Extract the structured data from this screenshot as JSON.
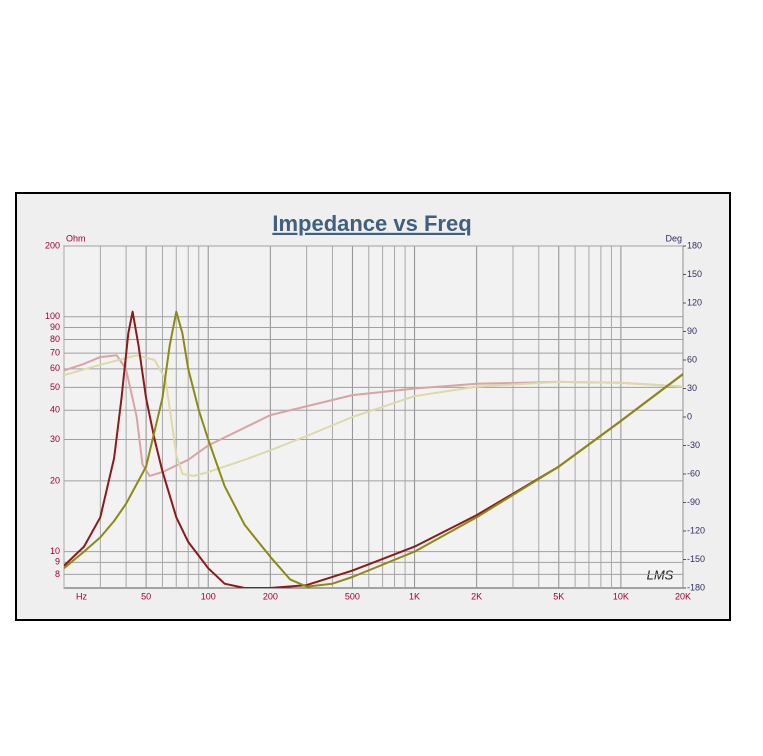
{
  "chart_data": {
    "type": "line",
    "title": "Impedance vs Freq",
    "ylabel": "Ohm",
    "y2label": "Deg",
    "xlabel": "Hz",
    "logo": "LMS",
    "xscale": "log",
    "yscale": "log",
    "grid": true,
    "xlim": [
      20,
      20000
    ],
    "ylim": [
      7,
      200
    ],
    "y2lim": [
      -180,
      180
    ],
    "xticks": [
      50,
      100,
      200,
      500,
      {
        "value": 1000,
        "label": "1K"
      },
      {
        "value": 2000,
        "label": "2K"
      },
      {
        "value": 5000,
        "label": "5K"
      },
      {
        "value": 10000,
        "label": "10K"
      },
      {
        "value": 20000,
        "label": "20K"
      }
    ],
    "xminor": [
      20,
      30,
      40,
      60,
      70,
      80,
      90,
      300,
      400,
      600,
      700,
      800,
      900,
      3000,
      4000,
      6000,
      7000,
      8000,
      9000
    ],
    "yticks": [
      8,
      9,
      10,
      20,
      30,
      40,
      50,
      60,
      70,
      80,
      90,
      100,
      200
    ],
    "y2ticks": [
      -180,
      -150,
      -120,
      -90,
      -60,
      -30,
      0,
      30,
      60,
      90,
      120,
      150,
      180
    ],
    "series": [
      {
        "color": "#d8a4a4",
        "axis": "y2",
        "x": [
          20,
          25,
          30,
          36,
          40,
          45,
          48,
          52,
          60,
          80,
          100,
          200,
          500,
          1000,
          2000,
          5000,
          10000,
          20000
        ],
        "values": [
          49,
          56,
          63,
          65,
          50,
          0,
          -50,
          -62,
          -58,
          -45,
          -30,
          2,
          23,
          30,
          35,
          37,
          36,
          32
        ]
      },
      {
        "color": "#dcdaa8",
        "axis": "y2",
        "x": [
          20,
          30,
          45,
          55,
          62,
          66,
          70,
          75,
          85,
          100,
          150,
          200,
          300,
          500,
          1000,
          2000,
          5000,
          10000,
          20000
        ],
        "values": [
          44,
          55,
          65,
          60,
          40,
          0,
          -40,
          -60,
          -62,
          -58,
          -45,
          -35,
          -20,
          0,
          22,
          32,
          37,
          36,
          32
        ]
      },
      {
        "color": "#8b1a1a",
        "x": [
          20,
          25,
          30,
          35,
          38,
          41,
          43,
          46,
          50,
          55,
          60,
          70,
          80,
          100,
          120,
          150,
          200,
          300,
          500,
          1000,
          2000,
          5000,
          10000,
          20000
        ],
        "values": [
          8.7,
          10.5,
          14,
          25,
          45,
          85,
          105,
          75,
          45,
          30,
          22,
          14,
          11,
          8.5,
          7.3,
          7,
          7,
          7.2,
          8.3,
          10.5,
          14.3,
          23,
          36,
          57
        ]
      },
      {
        "color": "#8b8b14",
        "x": [
          20,
          25,
          30,
          35,
          40,
          50,
          60,
          65,
          70,
          75,
          80,
          90,
          100,
          120,
          150,
          200,
          250,
          300,
          400,
          500,
          1000,
          2000,
          5000,
          10000,
          20000
        ],
        "values": [
          8.5,
          10,
          11.5,
          13.5,
          16,
          23,
          45,
          75,
          105,
          85,
          60,
          40,
          30,
          19,
          13,
          9.5,
          7.6,
          7.1,
          7.3,
          7.8,
          10,
          14,
          23,
          36,
          57
        ]
      }
    ]
  }
}
